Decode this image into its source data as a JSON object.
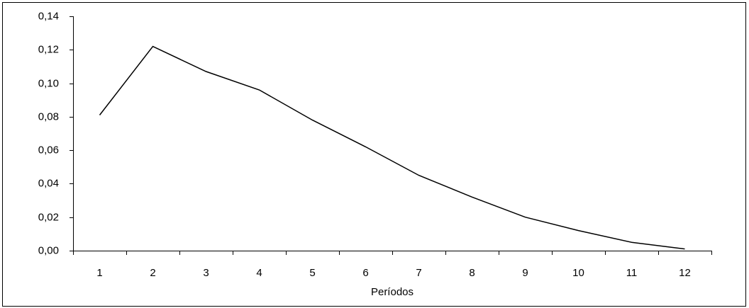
{
  "chart_data": {
    "type": "line",
    "categories": [
      "1",
      "2",
      "3",
      "4",
      "5",
      "6",
      "7",
      "8",
      "9",
      "10",
      "11",
      "12"
    ],
    "values": [
      0.081,
      0.122,
      0.107,
      0.096,
      0.078,
      0.062,
      0.045,
      0.032,
      0.02,
      0.012,
      0.005,
      0.001
    ],
    "color": "#000000",
    "x_label": "Períodos",
    "ylim": [
      0,
      0.14
    ],
    "yticks": [
      {
        "value": 0,
        "label": "0,00"
      },
      {
        "value": 0.02,
        "label": "0,02"
      },
      {
        "value": 0.04,
        "label": "0,04"
      },
      {
        "value": 0.06,
        "label": "0,06"
      },
      {
        "value": 0.08,
        "label": "0,08"
      },
      {
        "value": 0.1,
        "label": "0,10"
      },
      {
        "value": 0.12,
        "label": "0,12"
      },
      {
        "value": 0.14,
        "label": "0,14"
      }
    ],
    "grid": false
  }
}
